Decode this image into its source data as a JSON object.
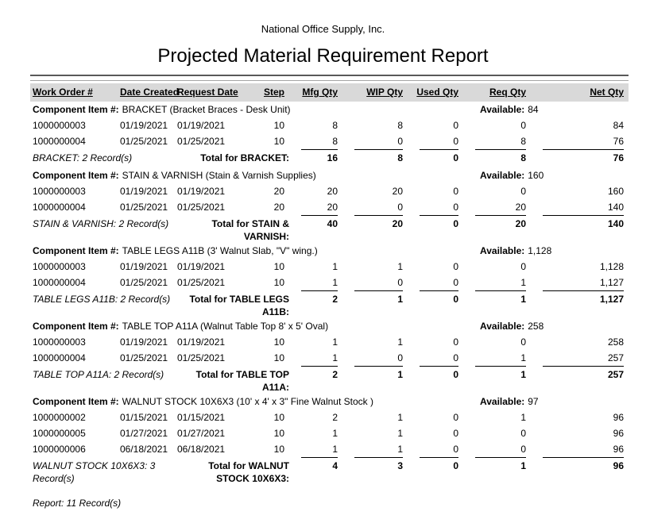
{
  "header": {
    "company": "National Office Supply, Inc.",
    "title": "Projected Material Requirement Report"
  },
  "colors": {
    "header_band_bg": "#d9d9d9",
    "rule_dark": "#595959",
    "rule_light": "#a6a6a6",
    "text": "#000000"
  },
  "table": {
    "columns": [
      "Work Order #",
      "Date Created",
      "Request Date",
      "Step",
      "Mfg Qty",
      "WIP Qty",
      "Used Qty",
      "Req Qty",
      "Net Qty"
    ],
    "component_label": "Component Item #:",
    "available_label": "Available:",
    "groups": [
      {
        "name": "BRACKET",
        "description": "(Bracket Braces - Desk Unit)",
        "available": "84",
        "rows": [
          {
            "work_order": "1000000003",
            "date_created": "01/19/2021",
            "request_date": "01/19/2021",
            "step": "10",
            "mfg_qty": "8",
            "wip_qty": "8",
            "used_qty": "0",
            "req_qty": "0",
            "net_qty": "84"
          },
          {
            "work_order": "1000000004",
            "date_created": "01/25/2021",
            "request_date": "01/25/2021",
            "step": "10",
            "mfg_qty": "8",
            "wip_qty": "0",
            "used_qty": "0",
            "req_qty": "8",
            "net_qty": "76"
          }
        ],
        "record_count_label": "BRACKET: 2 Record(s)",
        "total_label": "Total for BRACKET:",
        "totals": {
          "mfg_qty": "16",
          "wip_qty": "8",
          "used_qty": "0",
          "req_qty": "8",
          "net_qty": "76"
        }
      },
      {
        "name": "STAIN & VARNISH",
        "description": "(Stain & Varnish Supplies)",
        "available": "160",
        "rows": [
          {
            "work_order": "1000000003",
            "date_created": "01/19/2021",
            "request_date": "01/19/2021",
            "step": "20",
            "mfg_qty": "20",
            "wip_qty": "20",
            "used_qty": "0",
            "req_qty": "0",
            "net_qty": "160"
          },
          {
            "work_order": "1000000004",
            "date_created": "01/25/2021",
            "request_date": "01/25/2021",
            "step": "20",
            "mfg_qty": "20",
            "wip_qty": "0",
            "used_qty": "0",
            "req_qty": "20",
            "net_qty": "140"
          }
        ],
        "record_count_label": "STAIN & VARNISH: 2 Record(s)",
        "total_label": "Total for STAIN & VARNISH:",
        "totals": {
          "mfg_qty": "40",
          "wip_qty": "20",
          "used_qty": "0",
          "req_qty": "20",
          "net_qty": "140"
        }
      },
      {
        "name": "TABLE LEGS A11B",
        "description": "(3' Walnut Slab, \"V\" wing.)",
        "available": "1,128",
        "rows": [
          {
            "work_order": "1000000003",
            "date_created": "01/19/2021",
            "request_date": "01/19/2021",
            "step": "10",
            "mfg_qty": "1",
            "wip_qty": "1",
            "used_qty": "0",
            "req_qty": "0",
            "net_qty": "1,128"
          },
          {
            "work_order": "1000000004",
            "date_created": "01/25/2021",
            "request_date": "01/25/2021",
            "step": "10",
            "mfg_qty": "1",
            "wip_qty": "0",
            "used_qty": "0",
            "req_qty": "1",
            "net_qty": "1,127"
          }
        ],
        "record_count_label": "TABLE LEGS A11B: 2 Record(s)",
        "total_label": "Total for TABLE LEGS A11B:",
        "totals": {
          "mfg_qty": "2",
          "wip_qty": "1",
          "used_qty": "0",
          "req_qty": "1",
          "net_qty": "1,127"
        }
      },
      {
        "name": "TABLE TOP A11A",
        "description": "(Walnut Table Top 8' x 5' Oval)",
        "available": "258",
        "rows": [
          {
            "work_order": "1000000003",
            "date_created": "01/19/2021",
            "request_date": "01/19/2021",
            "step": "10",
            "mfg_qty": "1",
            "wip_qty": "1",
            "used_qty": "0",
            "req_qty": "0",
            "net_qty": "258"
          },
          {
            "work_order": "1000000004",
            "date_created": "01/25/2021",
            "request_date": "01/25/2021",
            "step": "10",
            "mfg_qty": "1",
            "wip_qty": "0",
            "used_qty": "0",
            "req_qty": "1",
            "net_qty": "257"
          }
        ],
        "record_count_label": "TABLE TOP A11A: 2 Record(s)",
        "total_label": "Total for TABLE TOP A11A:",
        "totals": {
          "mfg_qty": "2",
          "wip_qty": "1",
          "used_qty": "0",
          "req_qty": "1",
          "net_qty": "257"
        }
      },
      {
        "name": "WALNUT STOCK 10X6X3",
        "description": "(10' x 4' x 3\" Fine Walnut Stock )",
        "available": "97",
        "rows": [
          {
            "work_order": "1000000002",
            "date_created": "01/15/2021",
            "request_date": "01/15/2021",
            "step": "10",
            "mfg_qty": "2",
            "wip_qty": "1",
            "used_qty": "0",
            "req_qty": "1",
            "net_qty": "96"
          },
          {
            "work_order": "1000000005",
            "date_created": "01/27/2021",
            "request_date": "01/27/2021",
            "step": "10",
            "mfg_qty": "1",
            "wip_qty": "1",
            "used_qty": "0",
            "req_qty": "0",
            "net_qty": "96"
          },
          {
            "work_order": "1000000006",
            "date_created": "06/18/2021",
            "request_date": "06/18/2021",
            "step": "10",
            "mfg_qty": "1",
            "wip_qty": "1",
            "used_qty": "0",
            "req_qty": "0",
            "net_qty": "96"
          }
        ],
        "record_count_label": "WALNUT STOCK 10X6X3: 3 Record(s)",
        "total_label": "Total for WALNUT STOCK 10X6X3:",
        "totals": {
          "mfg_qty": "4",
          "wip_qty": "3",
          "used_qty": "0",
          "req_qty": "1",
          "net_qty": "96"
        }
      }
    ]
  },
  "footer": {
    "report_count": "Report: 11 Record(s)"
  }
}
